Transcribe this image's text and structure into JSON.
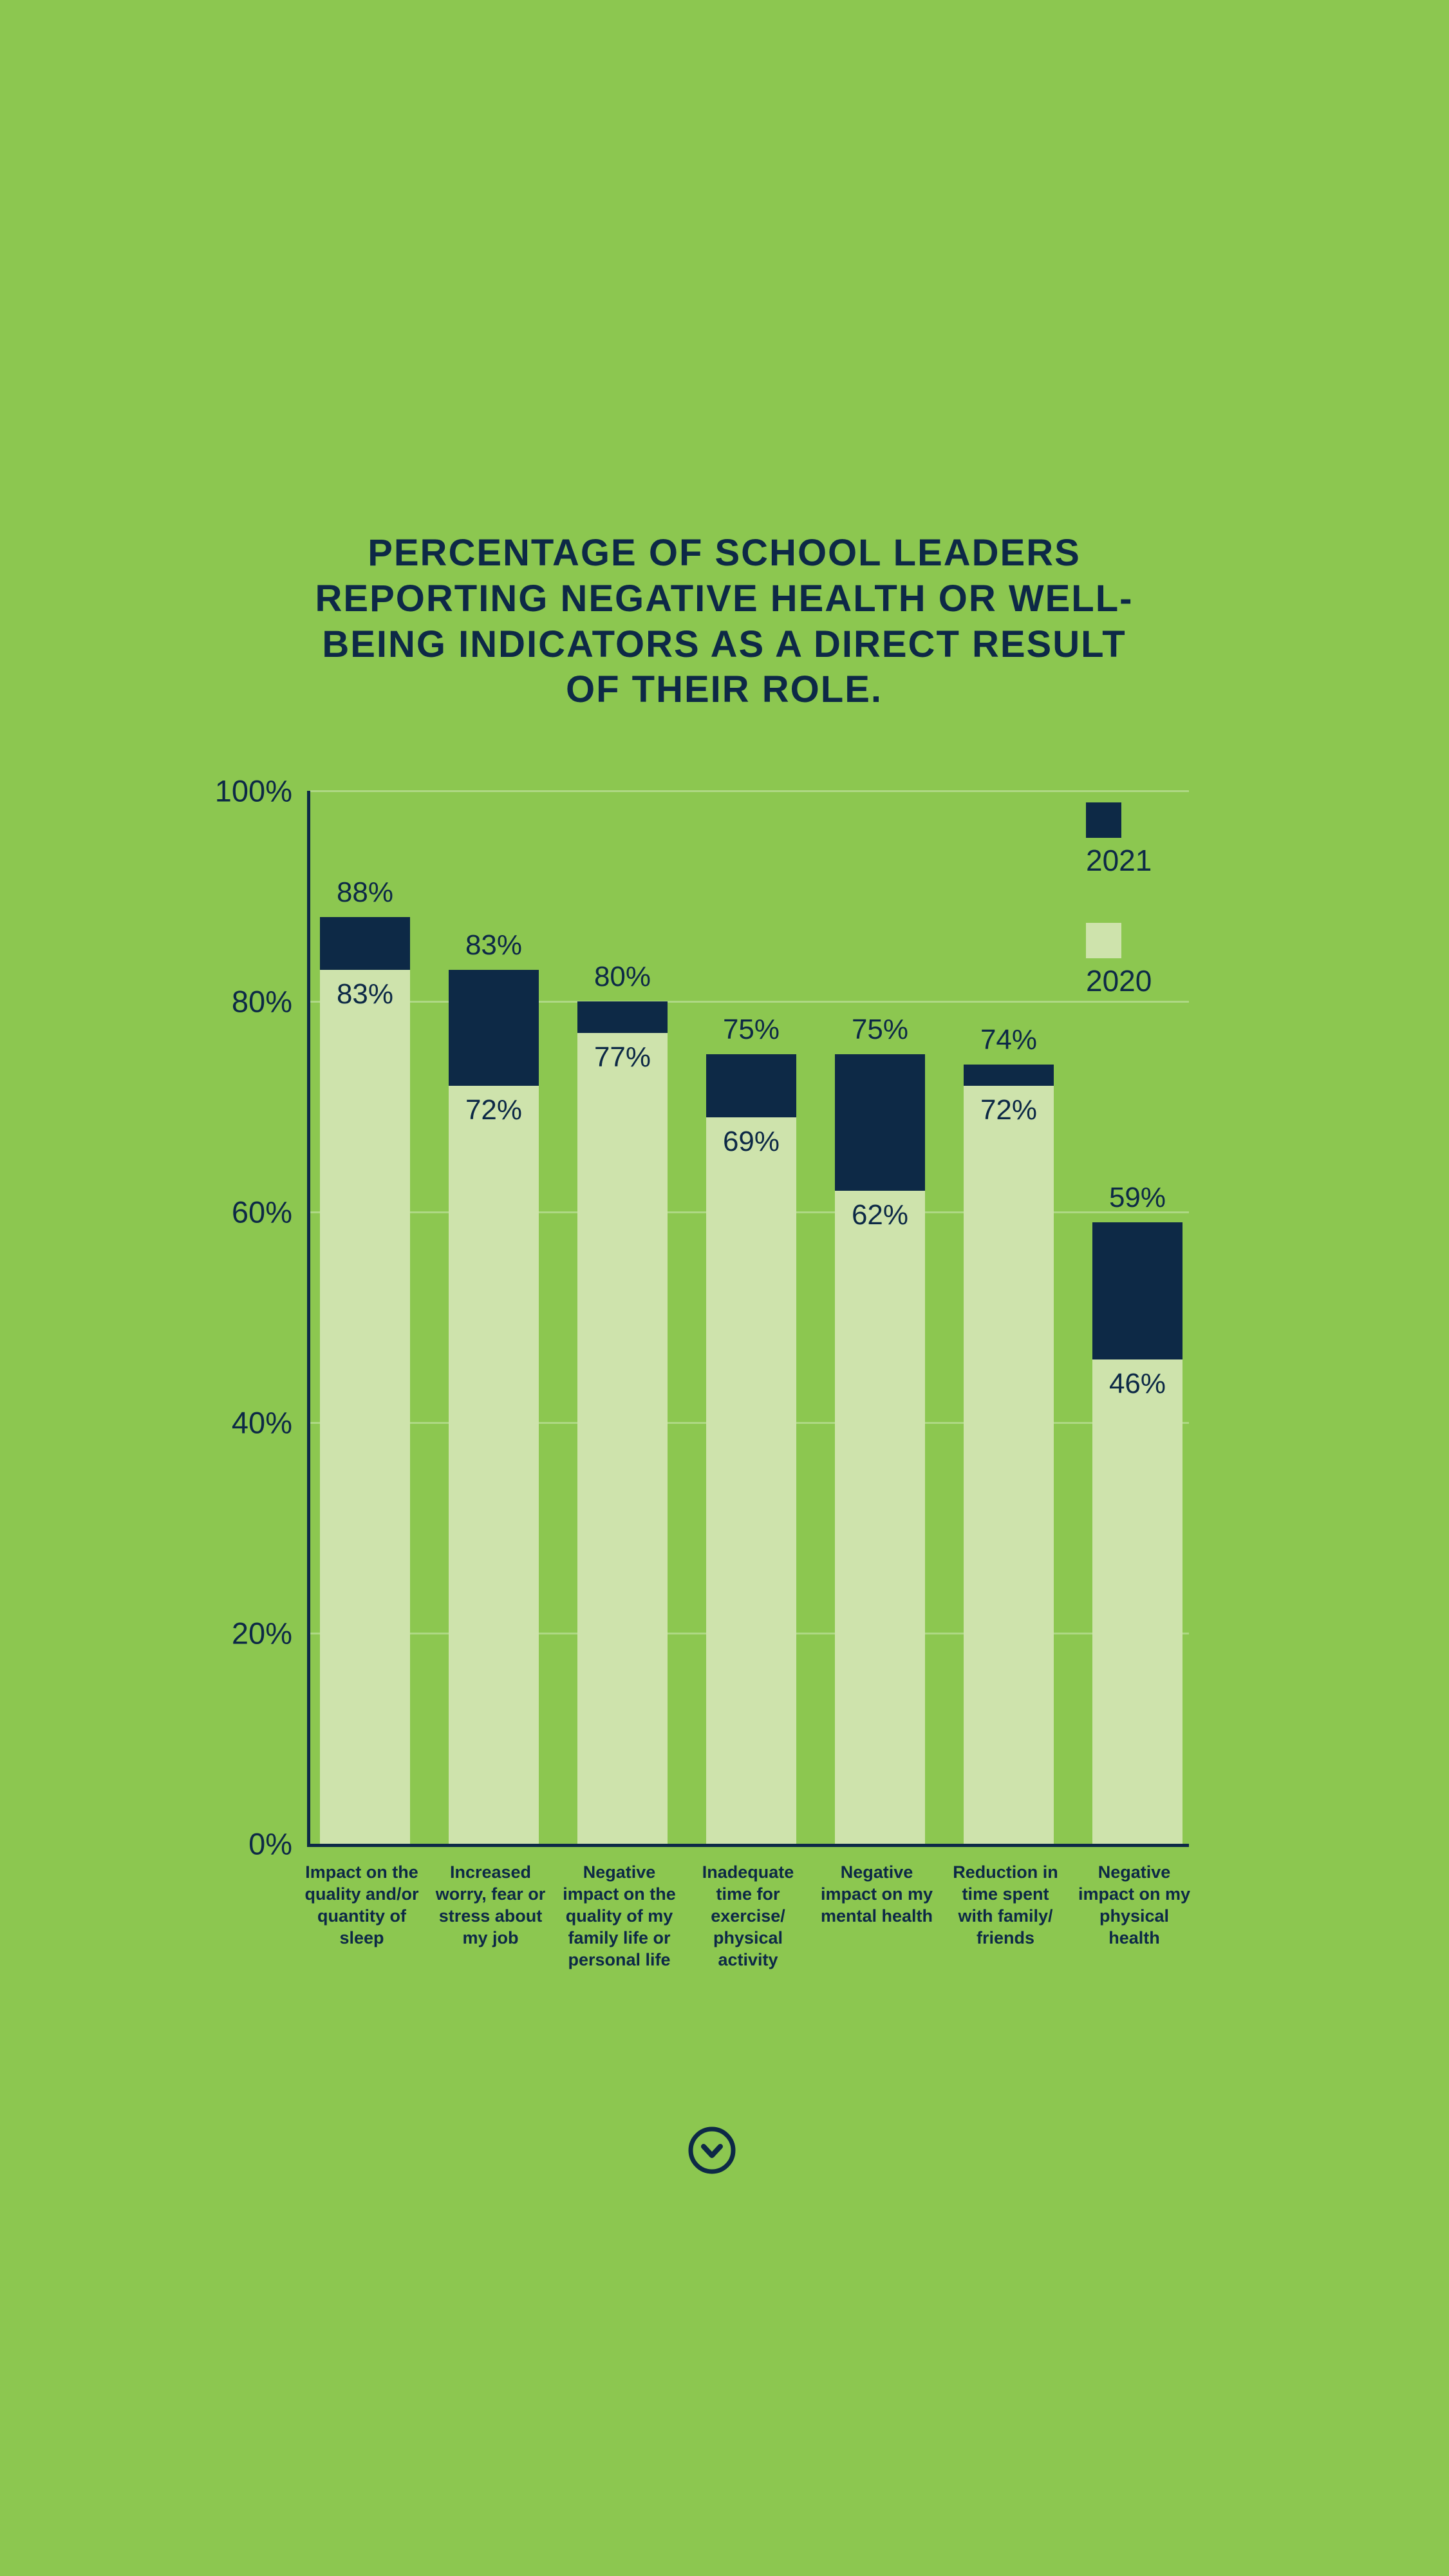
{
  "title": "PERCENTAGE OF SCHOOL LEADERS REPORTING NEGATIVE HEALTH OR WELL-BEING INDICATORS AS A DIRECT RESULT OF THEIR ROLE.",
  "colors": {
    "background": "#8CC750",
    "navy": "#0D2946",
    "bar_2020": "#CEE3AC",
    "bar_2021": "#0D2946",
    "gridline": "rgba(255,255,255,0.30)"
  },
  "legend": {
    "items": [
      {
        "label": "2021",
        "color": "#0D2946"
      },
      {
        "label": "2020",
        "color": "#CEE3AC"
      }
    ],
    "position": "top-right"
  },
  "chart_data": {
    "type": "bar",
    "title": "Percentage of school leaders reporting negative health or well-being indicators as a direct result of their role.",
    "categories": [
      "Impact on the quality and/or quantity of sleep",
      "Increased worry, fear or stress about my job",
      "Negative impact on the quality of my family life or personal life",
      "Inadequate time for exercise/ physical activity",
      "Negative impact on my mental health",
      "Reduction in time spent with family/ friends",
      "Negative impact on my physical health"
    ],
    "series": [
      {
        "name": "2021",
        "color": "#0D2946",
        "values": [
          88,
          83,
          80,
          75,
          75,
          74,
          59
        ]
      },
      {
        "name": "2020",
        "color": "#CEE3AC",
        "values": [
          83,
          72,
          77,
          69,
          62,
          72,
          46
        ]
      }
    ],
    "value_label_format": "{v}%",
    "ylim": [
      0,
      100
    ],
    "ytick_labels": [
      "0%",
      "20%",
      "40%",
      "60%",
      "80%",
      "100%"
    ],
    "grid": true,
    "legend_position": "top-right"
  },
  "scroll_icon": {
    "name": "chevron-down-in-circle"
  }
}
